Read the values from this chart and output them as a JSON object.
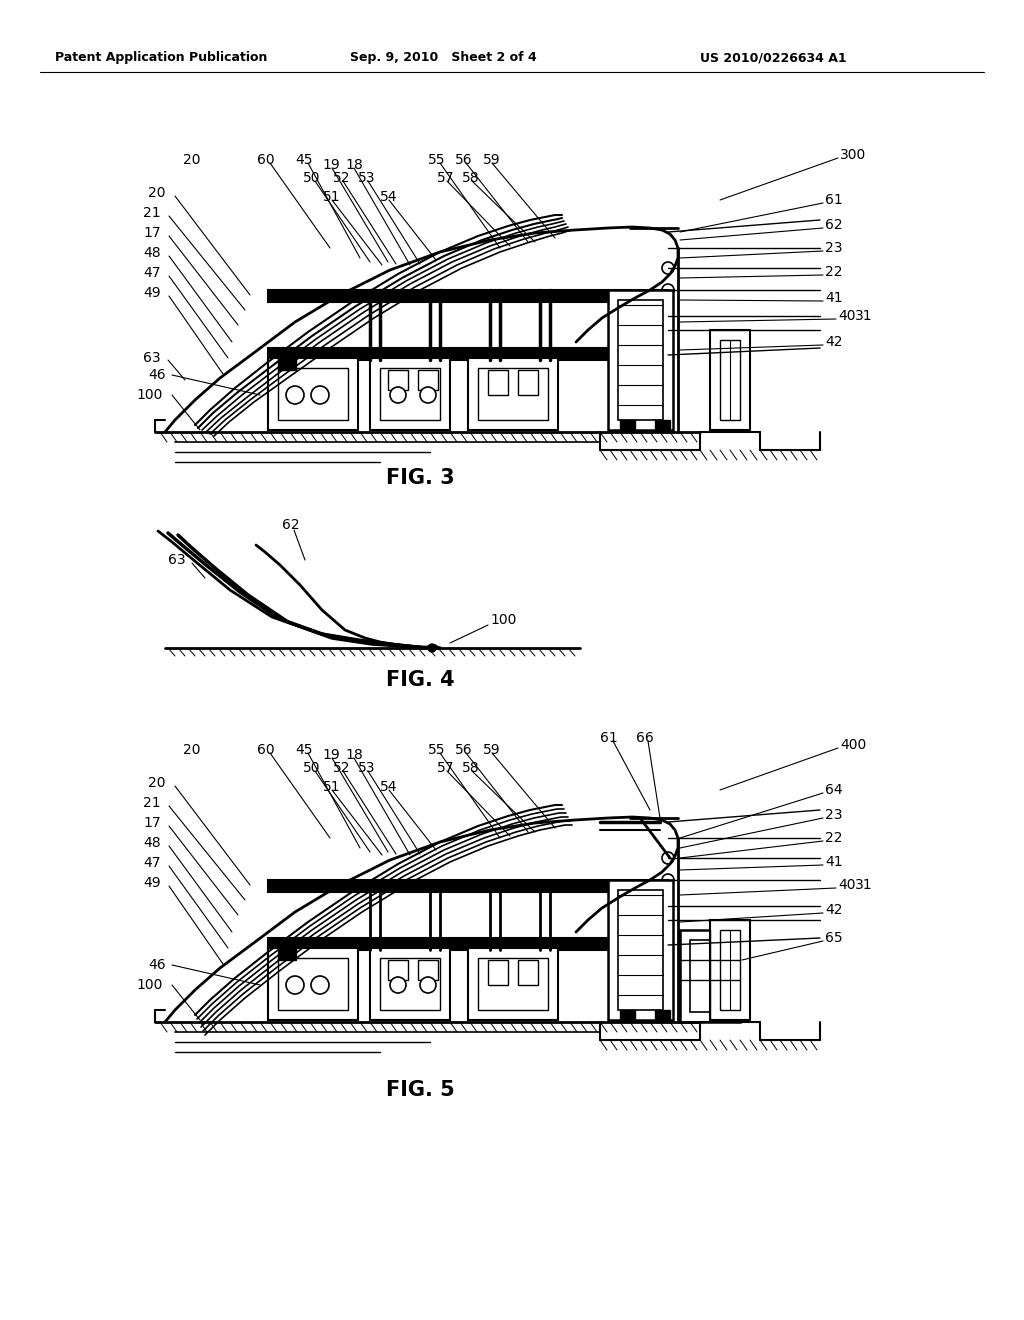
{
  "bg_color": "#ffffff",
  "header_left": "Patent Application Publication",
  "header_center": "Sep. 9, 2010   Sheet 2 of 4",
  "header_right": "US 2010/0226634 A1",
  "fig3_title": "FIG. 3",
  "fig4_title": "FIG. 4",
  "fig5_title": "FIG. 5",
  "lbl_fs": 10,
  "title_fs": 15,
  "header_fs": 9
}
